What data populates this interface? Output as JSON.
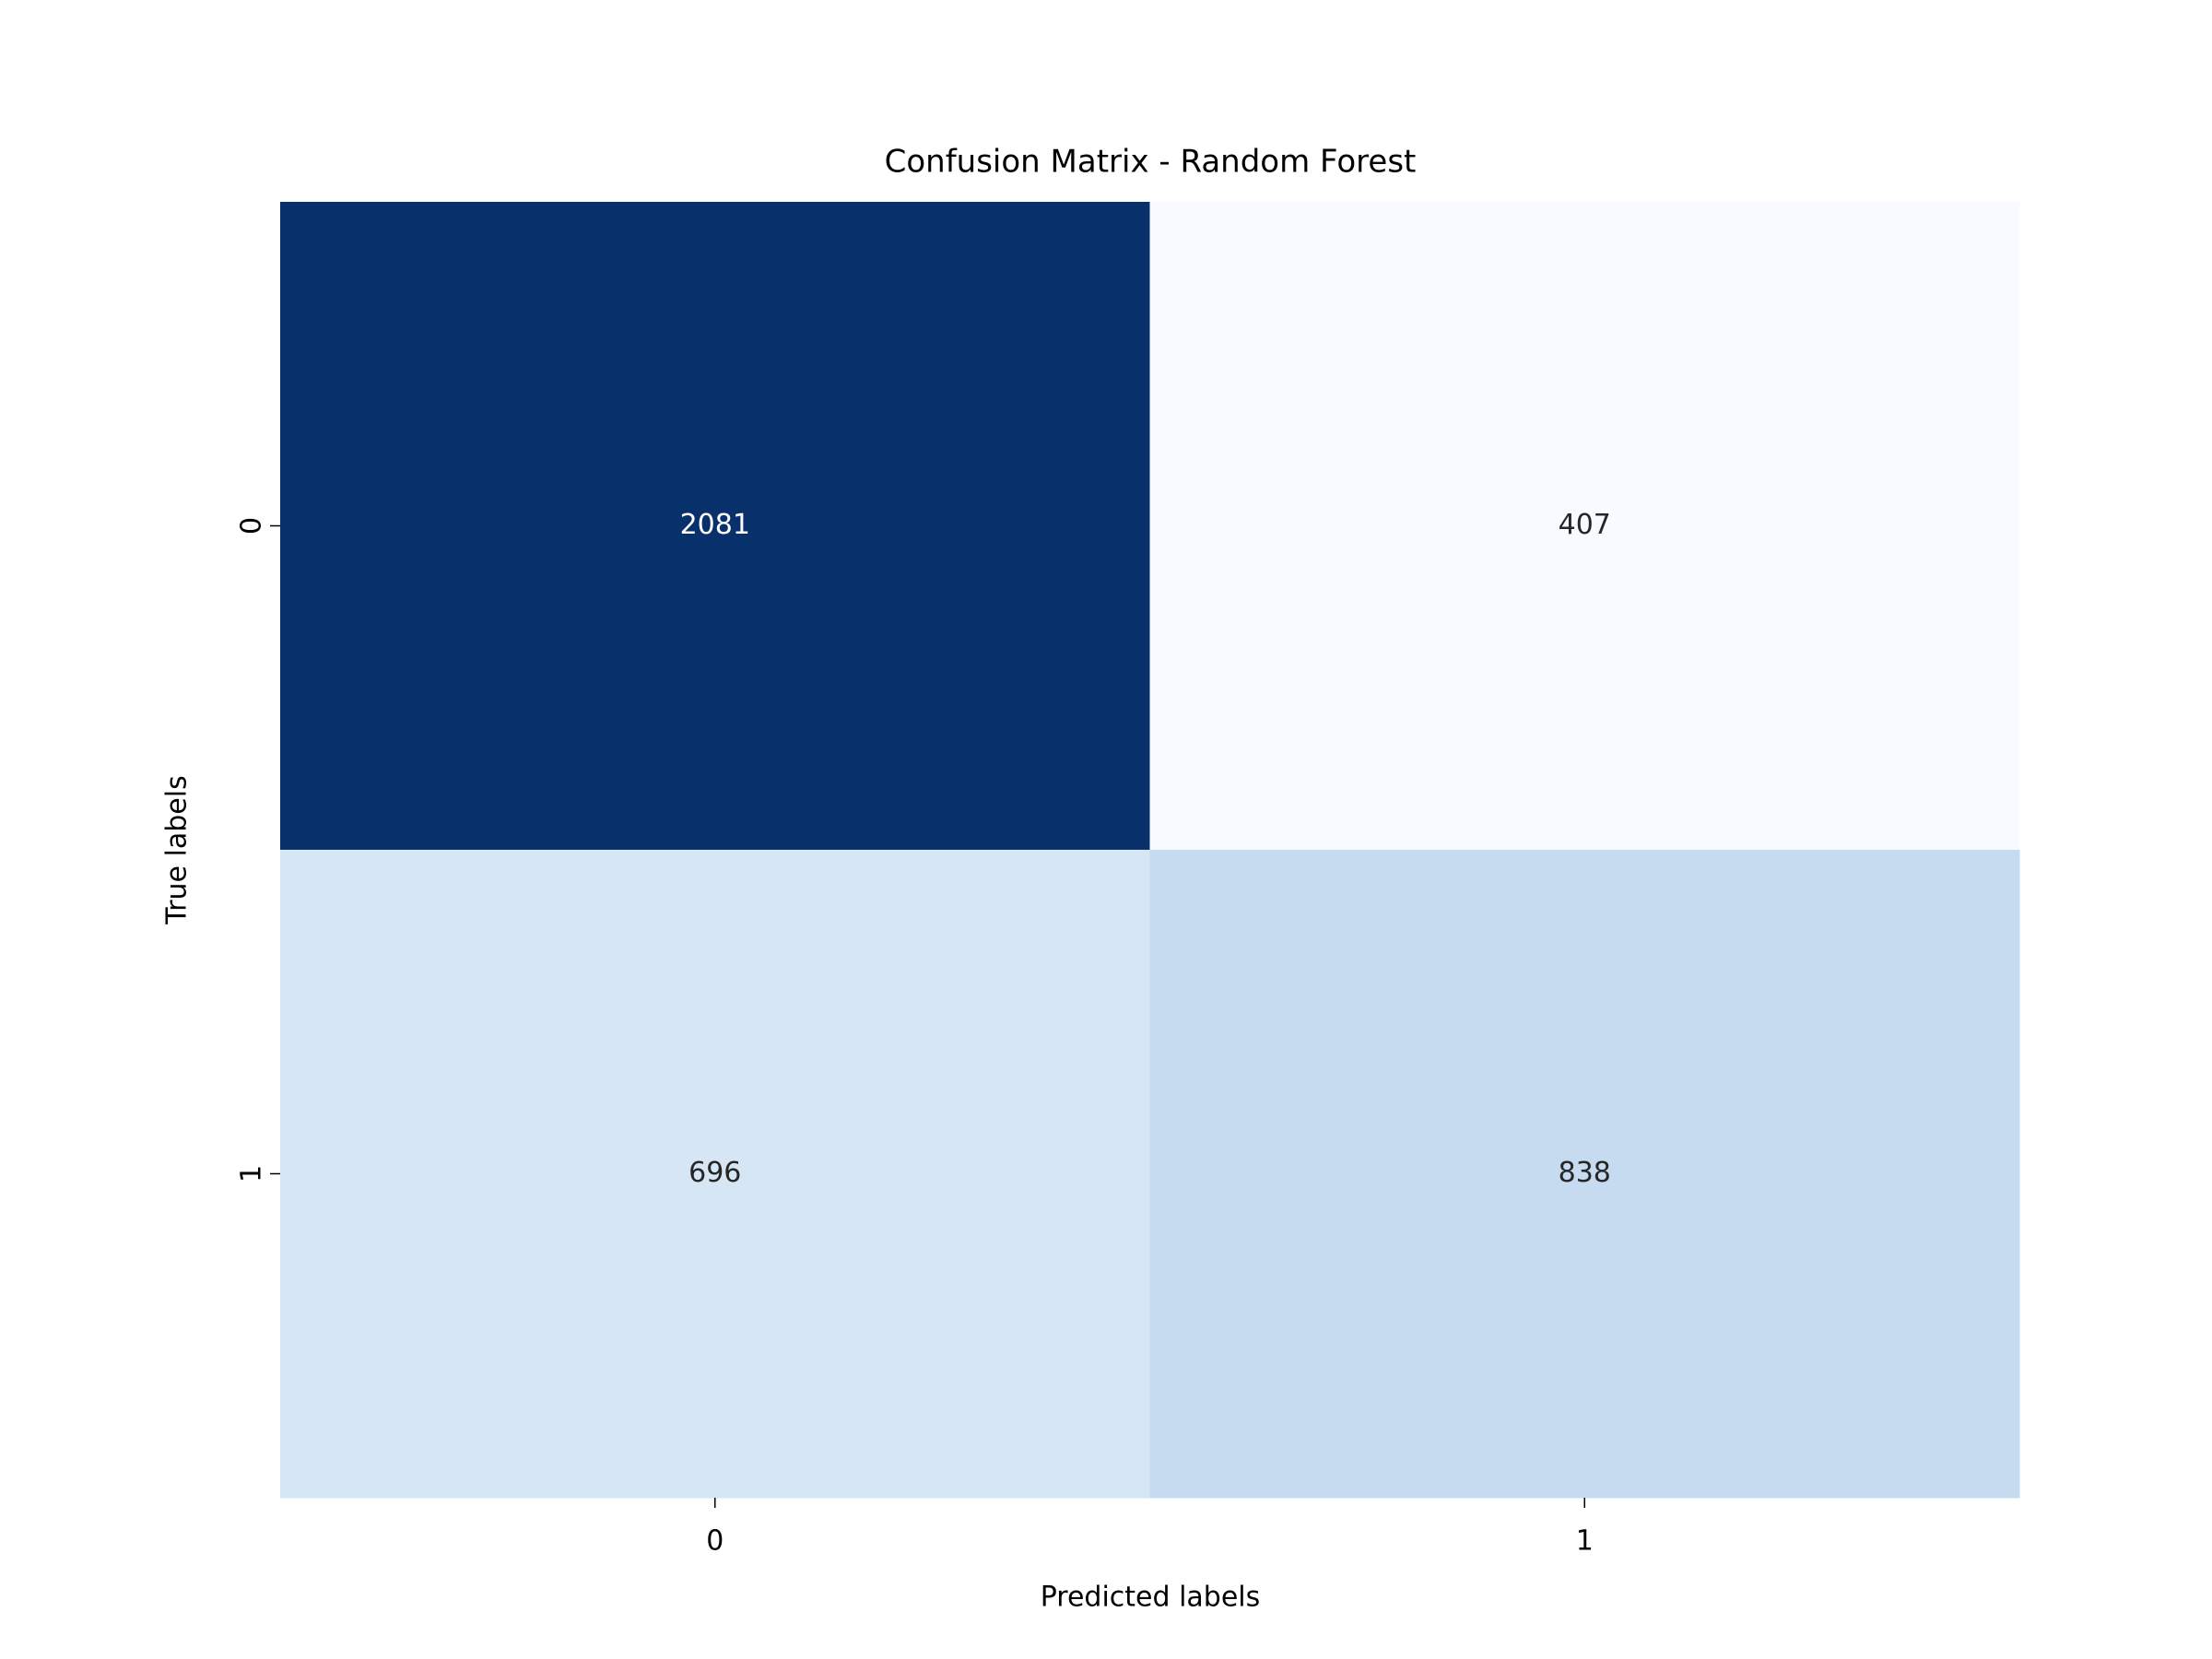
{
  "chart_data": {
    "type": "heatmap",
    "title": "Confusion Matrix - Random Forest",
    "x_label": "Predicted labels",
    "y_label": "True labels",
    "x_categories": [
      "0",
      "1"
    ],
    "y_categories": [
      "0",
      "1"
    ],
    "values": [
      [
        2081,
        407
      ],
      [
        696,
        838
      ]
    ],
    "colors": [
      [
        "#08306b",
        "#f7fbff"
      ],
      [
        "#d6e6f4",
        "#c6dbef"
      ]
    ]
  }
}
